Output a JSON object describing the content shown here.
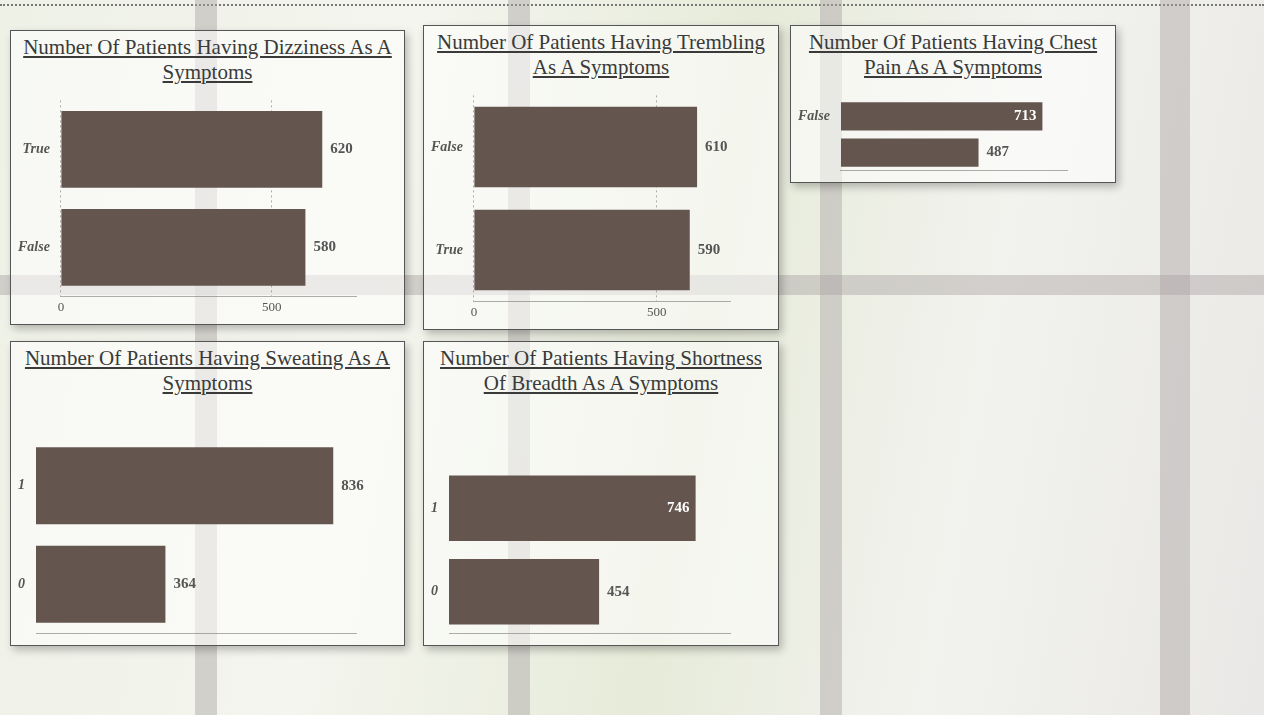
{
  "chart_data": [
    {
      "type": "bar",
      "title": "Number Of Patients Having Dizziness As A Symptoms",
      "orientation": "horizontal",
      "categories": [
        "True",
        "False"
      ],
      "values": [
        620,
        580
      ],
      "color": "#64554f",
      "xlim": [
        0,
        700
      ],
      "xticks": [
        0,
        500
      ],
      "grid": true,
      "data_labels": true
    },
    {
      "type": "bar",
      "title": "Number Of Patients Having Trembling As A Symptoms",
      "orientation": "horizontal",
      "categories": [
        "False",
        "True"
      ],
      "values": [
        610,
        590
      ],
      "color": "#64554f",
      "xlim": [
        0,
        700
      ],
      "xticks": [
        0,
        500
      ],
      "grid": true,
      "data_labels": true
    },
    {
      "type": "bar",
      "title": "Number Of Patients Having Chest Pain As A Symptoms",
      "orientation": "horizontal",
      "categories": [
        "False",
        null
      ],
      "values": [
        713,
        487
      ],
      "color": "#64554f",
      "xlim": [
        0,
        800
      ],
      "grid": false,
      "data_labels": true,
      "tick_labels": "y"
    },
    {
      "type": "bar",
      "title": "Number Of Patients Having Sweating As A Symptoms",
      "orientation": "horizontal",
      "categories": [
        "1",
        "0"
      ],
      "values": [
        836,
        364
      ],
      "color": "#64554f",
      "xlim": [
        0,
        900
      ],
      "grid": false,
      "data_labels": true,
      "tick_labels": "y"
    },
    {
      "type": "bar",
      "title": "Number Of Patients Having Shortness Of Breadth As A Symptoms",
      "orientation": "horizontal",
      "categories": [
        "1",
        "0"
      ],
      "values": [
        746,
        454
      ],
      "color": "#64554f",
      "xlim": [
        0,
        850
      ],
      "grid": false,
      "data_labels": true,
      "tick_labels": "y"
    }
  ]
}
